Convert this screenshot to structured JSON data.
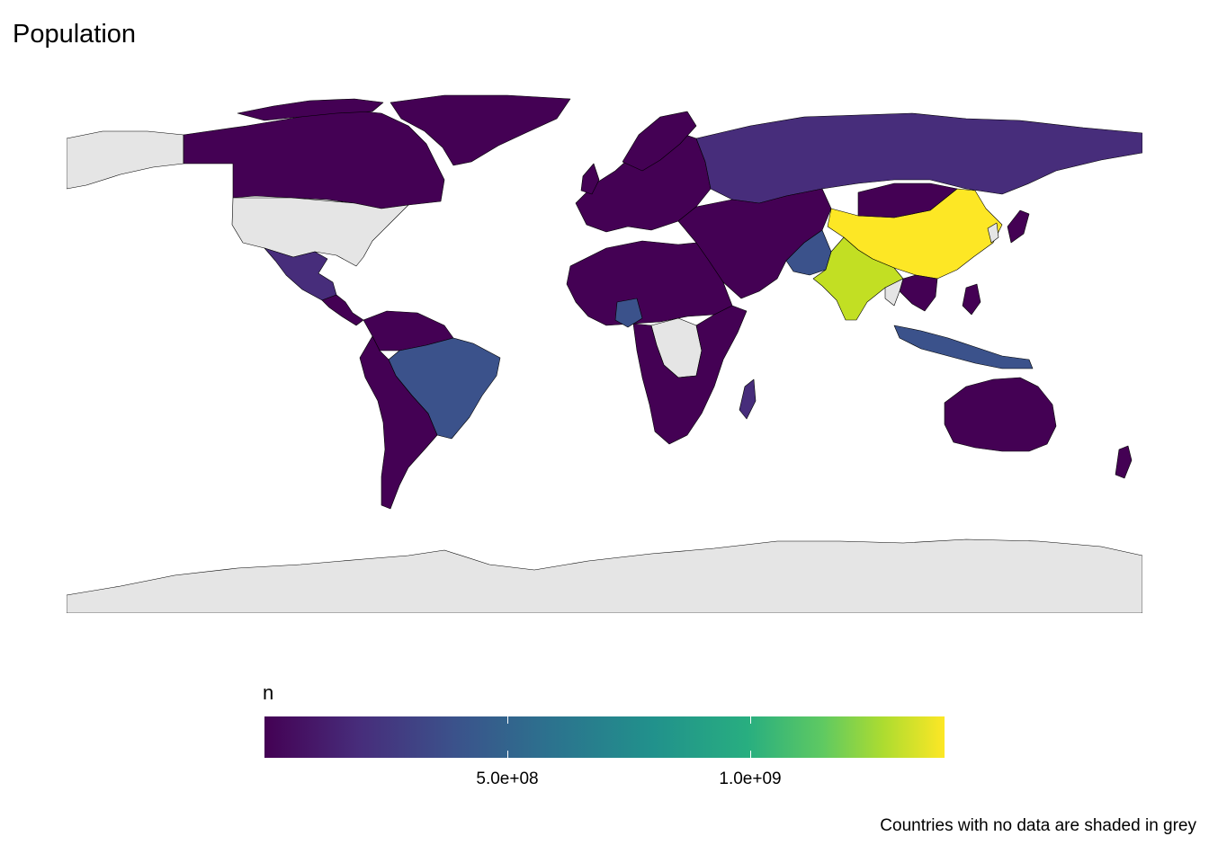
{
  "title": "Population",
  "legend": {
    "title": "n",
    "ticks": [
      {
        "label": "5.0e+08",
        "value": 500000000
      },
      {
        "label": "1.0e+09",
        "value": 1000000000
      }
    ],
    "range": [
      0,
      1400000000
    ],
    "palette": "viridis",
    "colors": [
      "#440154",
      "#472d7b",
      "#3b528b",
      "#2c728e",
      "#21918c",
      "#28ae80",
      "#5ec962",
      "#addc30",
      "#fde725"
    ]
  },
  "caption": "Countries with no data are shaded in grey",
  "colors": {
    "no_data": "#e5e5e5",
    "border": "#000000",
    "background": "#ffffff"
  }
}
